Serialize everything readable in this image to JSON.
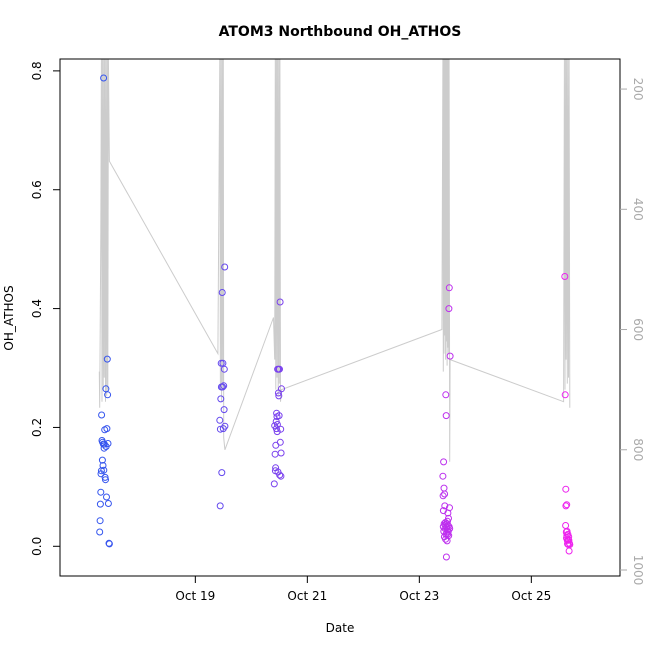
{
  "chart_data": {
    "type": "scatter",
    "title": "ATOM3 Northbound OH_ATHOS",
    "xlabel": "Date",
    "ylabel": "OH_ATHOS",
    "x_range": [
      "2004-10-16T14:00",
      "2004-10-26T14:00"
    ],
    "x_ticks": [
      {
        "date": "2004-10-19",
        "label": "Oct 19"
      },
      {
        "date": "2004-10-21",
        "label": "Oct 21"
      },
      {
        "date": "2004-10-23",
        "label": "Oct 23"
      },
      {
        "date": "2004-10-25",
        "label": "Oct 25"
      }
    ],
    "ylim": [
      -0.05,
      0.82
    ],
    "y_ticks": [
      0.0,
      0.2,
      0.4,
      0.6,
      0.8
    ],
    "y_tick_labels": [
      "0.0",
      "0.2",
      "0.4",
      "0.6",
      "0.8"
    ],
    "y2_range": [
      1010,
      150
    ],
    "y2_ticks": [
      200,
      400,
      600,
      800,
      1000
    ],
    "y2_tick_labels": [
      "200",
      "400",
      "600",
      "800",
      "1000"
    ],
    "grid": false,
    "point_color_start": "#3355ee",
    "point_color_end": "#ee22ee",
    "line_color": "#cccccc",
    "points": [
      [
        "2004-10-17T07:00",
        0.024
      ],
      [
        "2004-10-17T07:10",
        0.043
      ],
      [
        "2004-10-17T07:20",
        0.071
      ],
      [
        "2004-10-17T07:30",
        0.091
      ],
      [
        "2004-10-17T07:35",
        0.122
      ],
      [
        "2004-10-17T07:45",
        0.127
      ],
      [
        "2004-10-17T07:50",
        0.221
      ],
      [
        "2004-10-17T08:00",
        0.178
      ],
      [
        "2004-10-17T08:10",
        0.145
      ],
      [
        "2004-10-17T08:15",
        0.175
      ],
      [
        "2004-10-17T08:25",
        0.136
      ],
      [
        "2004-10-17T08:35",
        0.172
      ],
      [
        "2004-10-17T08:40",
        0.788
      ],
      [
        "2004-10-17T08:45",
        0.128
      ],
      [
        "2004-10-17T08:55",
        0.165
      ],
      [
        "2004-10-17T09:00",
        0.172
      ],
      [
        "2004-10-17T09:10",
        0.196
      ],
      [
        "2004-10-17T09:20",
        0.116
      ],
      [
        "2004-10-17T09:30",
        0.112
      ],
      [
        "2004-10-17T09:40",
        0.265
      ],
      [
        "2004-10-17T09:45",
        0.168
      ],
      [
        "2004-10-17T09:55",
        0.083
      ],
      [
        "2004-10-17T10:05",
        0.198
      ],
      [
        "2004-10-17T10:15",
        0.315
      ],
      [
        "2004-10-17T10:25",
        0.255
      ],
      [
        "2004-10-17T10:35",
        0.173
      ],
      [
        "2004-10-17T10:45",
        0.072
      ],
      [
        "2004-10-17T11:00",
        0.005
      ],
      [
        "2004-10-17T11:10",
        0.004
      ],
      [
        "2004-10-19T10:30",
        0.212
      ],
      [
        "2004-10-19T10:40",
        0.068
      ],
      [
        "2004-10-19T10:45",
        0.197
      ],
      [
        "2004-10-19T10:55",
        0.248
      ],
      [
        "2004-10-19T11:05",
        0.308
      ],
      [
        "2004-10-19T11:10",
        0.268
      ],
      [
        "2004-10-19T11:20",
        0.124
      ],
      [
        "2004-10-19T11:30",
        0.427
      ],
      [
        "2004-10-19T11:40",
        0.268
      ],
      [
        "2004-10-19T11:50",
        0.308
      ],
      [
        "2004-10-19T12:00",
        0.198
      ],
      [
        "2004-10-19T12:10",
        0.27
      ],
      [
        "2004-10-19T12:20",
        0.23
      ],
      [
        "2004-10-19T12:25",
        0.298
      ],
      [
        "2004-10-19T12:35",
        0.47
      ],
      [
        "2004-10-19T12:40",
        0.202
      ],
      [
        "2004-10-20T09:50",
        0.105
      ],
      [
        "2004-10-20T10:00",
        0.203
      ],
      [
        "2004-10-20T10:10",
        0.155
      ],
      [
        "2004-10-20T10:20",
        0.127
      ],
      [
        "2004-10-20T10:25",
        0.132
      ],
      [
        "2004-10-20T10:30",
        0.17
      ],
      [
        "2004-10-20T10:40",
        0.21
      ],
      [
        "2004-10-20T10:45",
        0.198
      ],
      [
        "2004-10-20T10:50",
        0.224
      ],
      [
        "2004-10-20T11:00",
        0.218
      ],
      [
        "2004-10-20T11:05",
        0.193
      ],
      [
        "2004-10-20T11:10",
        0.205
      ],
      [
        "2004-10-20T11:15",
        0.298
      ],
      [
        "2004-10-20T11:25",
        0.125
      ],
      [
        "2004-10-20T11:35",
        0.258
      ],
      [
        "2004-10-20T11:40",
        0.298
      ],
      [
        "2004-10-20T11:45",
        0.253
      ],
      [
        "2004-10-20T11:55",
        0.22
      ],
      [
        "2004-10-20T12:05",
        0.298
      ],
      [
        "2004-10-20T12:10",
        0.12
      ],
      [
        "2004-10-20T12:20",
        0.411
      ],
      [
        "2004-10-20T12:25",
        0.175
      ],
      [
        "2004-10-20T12:35",
        0.197
      ],
      [
        "2004-10-20T12:40",
        0.118
      ],
      [
        "2004-10-20T12:45",
        0.157
      ],
      [
        "2004-10-20T12:55",
        0.265
      ],
      [
        "2004-10-23T10:05",
        0.118
      ],
      [
        "2004-10-23T10:10",
        0.085
      ],
      [
        "2004-10-23T10:15",
        0.033
      ],
      [
        "2004-10-23T10:20",
        0.06
      ],
      [
        "2004-10-23T10:25",
        0.142
      ],
      [
        "2004-10-23T10:30",
        0.025
      ],
      [
        "2004-10-23T10:35",
        0.098
      ],
      [
        "2004-10-23T10:40",
        0.038
      ],
      [
        "2004-10-23T10:45",
        0.016
      ],
      [
        "2004-10-23T10:50",
        0.088
      ],
      [
        "2004-10-23T10:55",
        0.068
      ],
      [
        "2004-10-23T11:00",
        0.03
      ],
      [
        "2004-10-23T11:05",
        0.036
      ],
      [
        "2004-10-23T11:10",
        0.04
      ],
      [
        "2004-10-23T11:15",
        0.012
      ],
      [
        "2004-10-23T11:20",
        0.255
      ],
      [
        "2004-10-23T11:25",
        0.02
      ],
      [
        "2004-10-23T11:30",
        0.22
      ],
      [
        "2004-10-23T11:35",
        -0.018
      ],
      [
        "2004-10-23T11:40",
        0.032
      ],
      [
        "2004-10-23T11:45",
        0.022
      ],
      [
        "2004-10-23T11:50",
        0.038
      ],
      [
        "2004-10-23T11:55",
        0.009
      ],
      [
        "2004-10-23T12:00",
        0.028
      ],
      [
        "2004-10-23T12:05",
        0.042
      ],
      [
        "2004-10-23T12:10",
        0.02
      ],
      [
        "2004-10-23T12:15",
        0.056
      ],
      [
        "2004-10-23T12:20",
        0.035
      ],
      [
        "2004-10-23T12:25",
        0.025
      ],
      [
        "2004-10-23T12:30",
        0.047
      ],
      [
        "2004-10-23T12:35",
        0.018
      ],
      [
        "2004-10-23T12:40",
        0.4
      ],
      [
        "2004-10-23T12:45",
        0.033
      ],
      [
        "2004-10-23T12:50",
        0.435
      ],
      [
        "2004-10-23T12:55",
        0.065
      ],
      [
        "2004-10-23T13:00",
        0.03
      ],
      [
        "2004-10-23T13:10",
        0.32
      ],
      [
        "2004-10-25T14:20",
        0.454
      ],
      [
        "2004-10-25T14:30",
        0.255
      ],
      [
        "2004-10-25T14:40",
        0.035
      ],
      [
        "2004-10-25T14:45",
        0.096
      ],
      [
        "2004-10-25T14:50",
        0.068
      ],
      [
        "2004-10-25T15:00",
        0.024
      ],
      [
        "2004-10-25T15:05",
        0.014
      ],
      [
        "2004-10-25T15:10",
        0.07
      ],
      [
        "2004-10-25T15:15",
        0.018
      ],
      [
        "2004-10-25T15:20",
        0.025
      ],
      [
        "2004-10-25T15:25",
        0.01
      ],
      [
        "2004-10-25T15:30",
        0.004
      ],
      [
        "2004-10-25T15:40",
        0.02
      ],
      [
        "2004-10-25T15:45",
        0.012
      ],
      [
        "2004-10-25T15:50",
        0.003
      ],
      [
        "2004-10-25T16:00",
        0.016
      ],
      [
        "2004-10-25T16:05",
        0.01
      ],
      [
        "2004-10-25T16:10",
        -0.008
      ],
      [
        "2004-10-25T16:20",
        0.005
      ],
      [
        "2004-10-25T16:30",
        0.003
      ]
    ],
    "pressure_line": [
      [
        "2004-10-17T06:50",
        670
      ],
      [
        "2004-10-17T07:00",
        730
      ],
      [
        "2004-10-17T07:30",
        440
      ],
      [
        "2004-10-17T07:45",
        150
      ],
      [
        "2004-10-17T08:00",
        720
      ],
      [
        "2004-10-17T08:15",
        150
      ],
      [
        "2004-10-17T08:30",
        700
      ],
      [
        "2004-10-17T08:45",
        150
      ],
      [
        "2004-10-17T09:00",
        680
      ],
      [
        "2004-10-17T09:15",
        150
      ],
      [
        "2004-10-17T09:30",
        720
      ],
      [
        "2004-10-17T09:45",
        150
      ],
      [
        "2004-10-17T10:00",
        710
      ],
      [
        "2004-10-17T10:15",
        150
      ],
      [
        "2004-10-17T10:30",
        700
      ],
      [
        "2004-10-17T10:45",
        150
      ],
      [
        "2004-10-17T11:10",
        320
      ],
      [
        "2004-10-19T09:40",
        640
      ],
      [
        "2004-10-19T10:30",
        150
      ],
      [
        "2004-10-19T10:45",
        700
      ],
      [
        "2004-10-19T11:00",
        150
      ],
      [
        "2004-10-19T11:15",
        720
      ],
      [
        "2004-10-19T11:30",
        150
      ],
      [
        "2004-10-19T11:45",
        700
      ],
      [
        "2004-10-19T12:00",
        150
      ],
      [
        "2004-10-19T12:10",
        780
      ],
      [
        "2004-10-19T12:40",
        800
      ],
      [
        "2004-10-20T09:30",
        580
      ],
      [
        "2004-10-20T10:00",
        650
      ],
      [
        "2004-10-20T10:15",
        150
      ],
      [
        "2004-10-20T10:30",
        700
      ],
      [
        "2004-10-20T10:45",
        150
      ],
      [
        "2004-10-20T11:00",
        680
      ],
      [
        "2004-10-20T11:15",
        150
      ],
      [
        "2004-10-20T11:30",
        710
      ],
      [
        "2004-10-20T11:45",
        150
      ],
      [
        "2004-10-20T12:00",
        690
      ],
      [
        "2004-10-20T12:15",
        150
      ],
      [
        "2004-10-20T12:30",
        720
      ],
      [
        "2004-10-20T12:55",
        700
      ],
      [
        "2004-10-23T09:40",
        600
      ],
      [
        "2004-10-23T10:05",
        150
      ],
      [
        "2004-10-23T10:15",
        670
      ],
      [
        "2004-10-23T10:25",
        150
      ],
      [
        "2004-10-23T10:35",
        640
      ],
      [
        "2004-10-23T10:45",
        150
      ],
      [
        "2004-10-23T10:55",
        610
      ],
      [
        "2004-10-23T11:05",
        150
      ],
      [
        "2004-10-23T11:15",
        650
      ],
      [
        "2004-10-23T11:25",
        150
      ],
      [
        "2004-10-23T11:35",
        620
      ],
      [
        "2004-10-23T11:45",
        150
      ],
      [
        "2004-10-23T11:55",
        660
      ],
      [
        "2004-10-23T12:05",
        150
      ],
      [
        "2004-10-23T12:15",
        630
      ],
      [
        "2004-10-23T12:25",
        150
      ],
      [
        "2004-10-23T12:35",
        640
      ],
      [
        "2004-10-23T12:45",
        150
      ],
      [
        "2004-10-23T13:00",
        820
      ],
      [
        "2004-10-23T13:10",
        650
      ],
      [
        "2004-10-25T13:50",
        720
      ],
      [
        "2004-10-25T14:10",
        150
      ],
      [
        "2004-10-25T14:25",
        700
      ],
      [
        "2004-10-25T14:40",
        150
      ],
      [
        "2004-10-25T14:55",
        650
      ],
      [
        "2004-10-25T15:10",
        150
      ],
      [
        "2004-10-25T15:25",
        690
      ],
      [
        "2004-10-25T15:40",
        150
      ],
      [
        "2004-10-25T15:55",
        680
      ],
      [
        "2004-10-25T16:10",
        150
      ],
      [
        "2004-10-25T16:30",
        730
      ]
    ]
  }
}
